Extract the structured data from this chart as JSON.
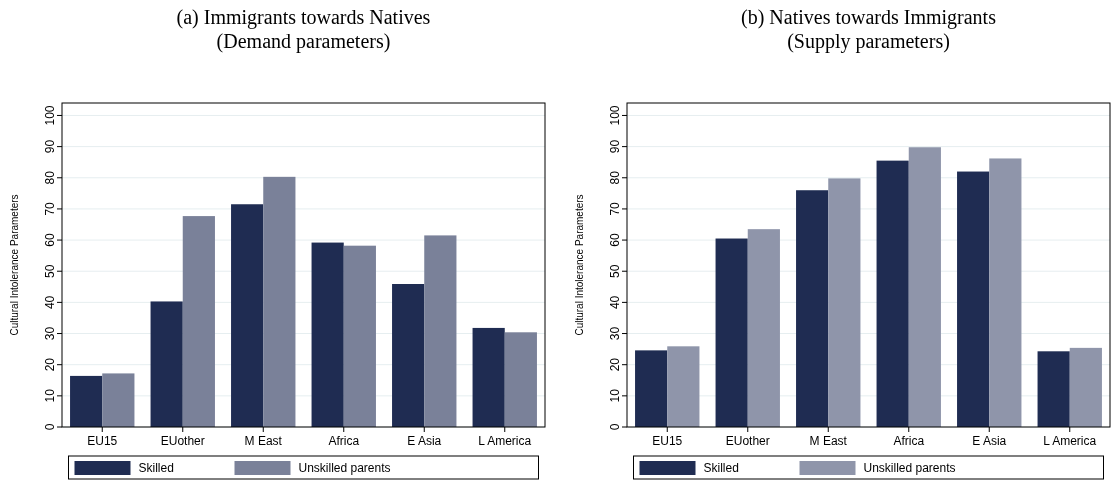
{
  "chart_data": [
    {
      "type": "bar",
      "title": "(a) Immigrants towards Natives",
      "subtitle": "(Demand parameters)",
      "ylabel": "Cultural Intolerance Parameters",
      "categories": [
        "EU15",
        "EUother",
        "M East",
        "Africa",
        "E Asia",
        "L America"
      ],
      "series": [
        {
          "name": "Skilled",
          "color": "#1f2c52",
          "values": [
            16.4,
            40.3,
            71.5,
            59.2,
            45.9,
            31.8
          ]
        },
        {
          "name": "Unskilled parents",
          "color": "#7a8199",
          "values": [
            17.2,
            67.7,
            80.3,
            58.2,
            61.5,
            30.4
          ]
        }
      ],
      "ylim": [
        0,
        104
      ],
      "yticks": [
        0,
        10,
        20,
        30,
        40,
        50,
        60,
        70,
        80,
        90,
        100
      ],
      "grid": "y",
      "legend": "bottom"
    },
    {
      "type": "bar",
      "title": "(b) Natives towards Immigrants",
      "subtitle": "(Supply parameters)",
      "ylabel": "Cultural Intolerance Parameters",
      "categories": [
        "EU15",
        "EUother",
        "M East",
        "Africa",
        "E Asia",
        "L America"
      ],
      "series": [
        {
          "name": "Skilled",
          "color": "#1f2c52",
          "values": [
            24.6,
            60.5,
            76.0,
            85.5,
            82.0,
            24.3
          ]
        },
        {
          "name": "Unskilled parents",
          "color": "#8f95aa",
          "values": [
            25.9,
            63.5,
            79.8,
            89.8,
            86.2,
            25.4
          ]
        }
      ],
      "ylim": [
        0,
        104
      ],
      "yticks": [
        0,
        10,
        20,
        30,
        40,
        50,
        60,
        70,
        80,
        90,
        100
      ],
      "grid": "y",
      "legend": "bottom"
    }
  ]
}
